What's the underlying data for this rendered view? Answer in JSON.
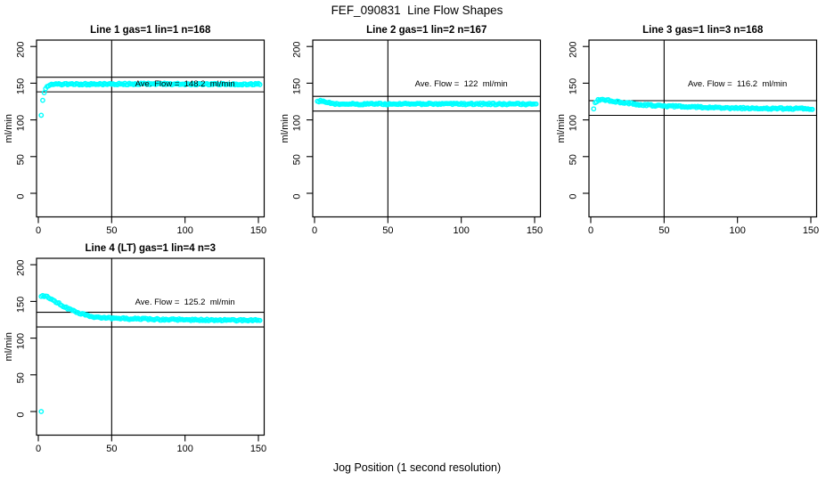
{
  "page_title": "FEF_090831  Line Flow Shapes",
  "x_axis_label": "Jog Position (1 second resolution)",
  "colors": {
    "point": "#00FFFF",
    "line": "#000000",
    "background": "#FFFFFF"
  },
  "chart_data": [
    {
      "type": "scatter",
      "title": "Line 1 gas=1 lin=1 n=168",
      "ylabel": "ml/min",
      "xlim": [
        0,
        150
      ],
      "ylim": [
        0,
        200
      ],
      "xticks": [
        0,
        50,
        100,
        150
      ],
      "yticks": [
        0,
        50,
        100,
        150,
        200
      ],
      "ave_flow": 148.2,
      "ave_label": "Ave. Flow =  148.2  ml/min",
      "annotation_xy": [
        100,
        150
      ],
      "hlines": [
        158.2,
        138.2
      ],
      "vline_x": 50,
      "x_range": [
        2,
        151
      ],
      "points_step": 1,
      "points_profile": [
        [
          2,
          107
        ],
        [
          3,
          127.5
        ],
        [
          4,
          137.5
        ],
        [
          5,
          143
        ],
        [
          6,
          146
        ],
        [
          8,
          147.8
        ],
        [
          10,
          148.2
        ],
        [
          15,
          148.5
        ],
        [
          20,
          148.6
        ],
        [
          30,
          148.6
        ],
        [
          50,
          148.8
        ],
        [
          80,
          149
        ],
        [
          100,
          148.9
        ],
        [
          120,
          148.8
        ],
        [
          151,
          148.6
        ]
      ],
      "outliers": []
    },
    {
      "type": "scatter",
      "title": "Line 2 gas=1 lin=2 n=167",
      "ylabel": "ml/min",
      "xlim": [
        0,
        150
      ],
      "ylim": [
        0,
        200
      ],
      "xticks": [
        0,
        50,
        100,
        150
      ],
      "yticks": [
        0,
        50,
        100,
        150,
        200
      ],
      "ave_flow": 122,
      "ave_label": "Ave. Flow =  122  ml/min",
      "annotation_xy": [
        100,
        150
      ],
      "hlines": [
        132,
        112
      ],
      "vline_x": 50,
      "x_range": [
        2,
        151
      ],
      "points_step": 1,
      "points_profile": [
        [
          2,
          124.5
        ],
        [
          3,
          125.6
        ],
        [
          4,
          125.8
        ],
        [
          5,
          125.4
        ],
        [
          7,
          124.4
        ],
        [
          9,
          123.4
        ],
        [
          11,
          122.7
        ],
        [
          14,
          122
        ],
        [
          18,
          121.6
        ],
        [
          25,
          121.5
        ],
        [
          40,
          121.7
        ],
        [
          60,
          121.8
        ],
        [
          80,
          121.9
        ],
        [
          100,
          121.8
        ],
        [
          120,
          121.7
        ],
        [
          151,
          121.4
        ]
      ],
      "outliers": []
    },
    {
      "type": "scatter",
      "title": "Line 3 gas=1 lin=3 n=168",
      "ylabel": "ml/min",
      "xlim": [
        0,
        150
      ],
      "ylim": [
        0,
        200
      ],
      "xticks": [
        0,
        50,
        100,
        150
      ],
      "yticks": [
        0,
        50,
        100,
        150,
        200
      ],
      "ave_flow": 116.2,
      "ave_label": "Ave. Flow =  116.2  ml/min",
      "annotation_xy": [
        100,
        150
      ],
      "hlines": [
        126.2,
        106.2
      ],
      "vline_x": 50,
      "x_range": [
        2,
        151
      ],
      "points_step": 1,
      "points_profile": [
        [
          2,
          115
        ],
        [
          3,
          123
        ],
        [
          4,
          125.5
        ],
        [
          5,
          126.6
        ],
        [
          6,
          127.1
        ],
        [
          8,
          127.3
        ],
        [
          10,
          127
        ],
        [
          13,
          126.2
        ],
        [
          16,
          125.2
        ],
        [
          20,
          124
        ],
        [
          25,
          122.7
        ],
        [
          30,
          121.6
        ],
        [
          35,
          120.7
        ],
        [
          40,
          120
        ],
        [
          45,
          119.4
        ],
        [
          50,
          119
        ],
        [
          60,
          118.2
        ],
        [
          70,
          117.5
        ],
        [
          80,
          117
        ],
        [
          90,
          116.5
        ],
        [
          100,
          116.1
        ],
        [
          110,
          115.8
        ],
        [
          120,
          115.6
        ],
        [
          135,
          115.4
        ],
        [
          151,
          115.2
        ]
      ],
      "outliers": []
    },
    {
      "type": "scatter",
      "title": "Line 4 (LT) gas=1 lin=4 n=3",
      "ylabel": "ml/min",
      "xlim": [
        0,
        150
      ],
      "ylim": [
        0,
        200
      ],
      "xticks": [
        0,
        50,
        100,
        150
      ],
      "yticks": [
        0,
        50,
        100,
        150,
        200
      ],
      "ave_flow": 125.2,
      "ave_label": "Ave. Flow =  125.2  ml/min",
      "annotation_xy": [
        100,
        150
      ],
      "hlines": [
        135.2,
        115.2
      ],
      "vline_x": 50,
      "x_range": [
        2,
        151
      ],
      "points_step": 1,
      "points_profile": [
        [
          2,
          157
        ],
        [
          3,
          157.5
        ],
        [
          5,
          157.2
        ],
        [
          7,
          155.5
        ],
        [
          9,
          153.2
        ],
        [
          11,
          150.8
        ],
        [
          13,
          148.3
        ],
        [
          15,
          146
        ],
        [
          17,
          143.8
        ],
        [
          19,
          141.7
        ],
        [
          21,
          139.7
        ],
        [
          23,
          137.8
        ],
        [
          25,
          136.1
        ],
        [
          27,
          134.6
        ],
        [
          29,
          133.3
        ],
        [
          31,
          132.2
        ],
        [
          33,
          131.2
        ],
        [
          35,
          129.8
        ],
        [
          38,
          129
        ],
        [
          41,
          128.5
        ],
        [
          44,
          128
        ],
        [
          47,
          127.7
        ],
        [
          50,
          127.4
        ],
        [
          55,
          127
        ],
        [
          60,
          126.6
        ],
        [
          65,
          126.3
        ],
        [
          70,
          126
        ],
        [
          75,
          125.8
        ],
        [
          80,
          125.6
        ],
        [
          85,
          125.4
        ],
        [
          90,
          125.3
        ],
        [
          95,
          125.2
        ],
        [
          100,
          125.1
        ],
        [
          110,
          124.9
        ],
        [
          120,
          124.7
        ],
        [
          130,
          124.5
        ],
        [
          140,
          124.4
        ],
        [
          151,
          124.2
        ]
      ],
      "outliers": [
        [
          2,
          0
        ]
      ]
    }
  ]
}
